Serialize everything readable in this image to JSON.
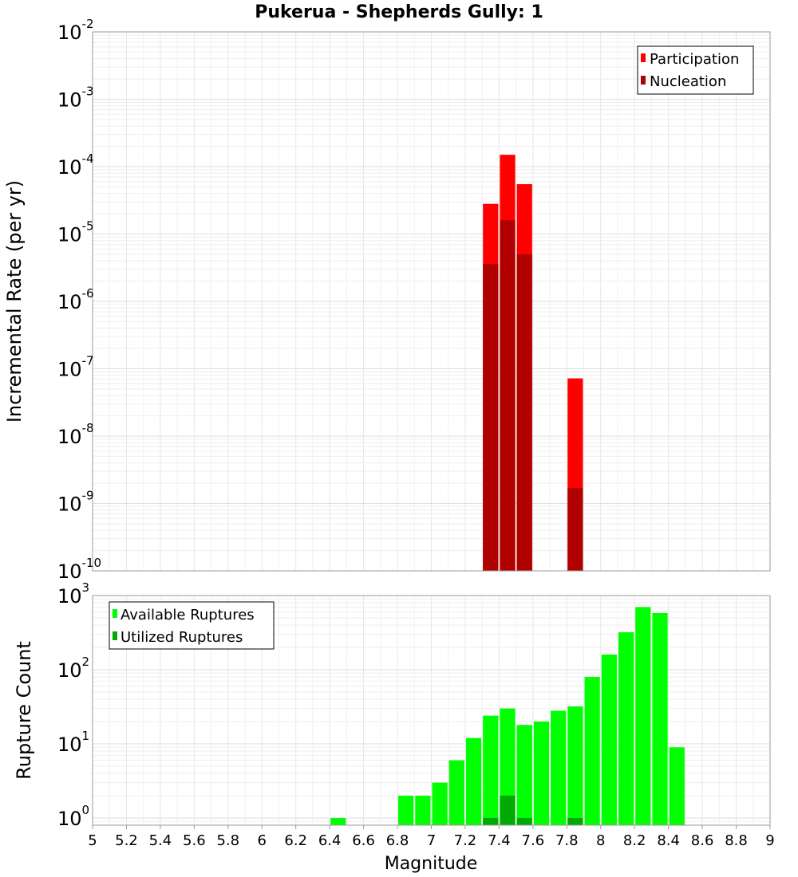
{
  "chart_data": [
    {
      "type": "bar",
      "title": "Pukerua - Shepherds Gully: 1",
      "ylabel": "Incremental Rate (per yr)",
      "xlabel": "",
      "yscale": "log",
      "ylim_exp": [
        -10,
        -2
      ],
      "yticks": [
        {
          "base": "10",
          "exp": "-2"
        },
        {
          "base": "10",
          "exp": "-3"
        },
        {
          "base": "10",
          "exp": "-4"
        },
        {
          "base": "10",
          "exp": "-5"
        },
        {
          "base": "10",
          "exp": "-6"
        },
        {
          "base": "10",
          "exp": "-7"
        },
        {
          "base": "10",
          "exp": "-8"
        },
        {
          "base": "10",
          "exp": "-9"
        },
        {
          "base": "10",
          "exp": "-10"
        }
      ],
      "xlim": [
        5,
        9
      ],
      "bin_width": 0.1,
      "grid": true,
      "legend_position": "top-right",
      "series": [
        {
          "name": "Participation",
          "color": "#ff0000",
          "x": [
            7.35,
            7.45,
            7.55,
            7.85
          ],
          "values": [
            2.8e-05,
            0.00015,
            5.5e-05,
            7.2e-08
          ]
        },
        {
          "name": "Nucleation",
          "color": "#b00000",
          "x": [
            7.35,
            7.45,
            7.55,
            7.85
          ],
          "values": [
            3.6e-06,
            1.6e-05,
            5e-06,
            1.7e-09
          ]
        }
      ]
    },
    {
      "type": "bar",
      "title": "",
      "ylabel": "Rupture Count",
      "xlabel": "Magnitude",
      "yscale": "log",
      "ylim": [
        0.8,
        1000
      ],
      "yticks": [
        {
          "base": "10",
          "exp": "3",
          "value": 1000
        },
        {
          "base": "10",
          "exp": "2",
          "value": 100
        },
        {
          "base": "10",
          "exp": "1",
          "value": 10
        },
        {
          "base": "10",
          "exp": "0",
          "value": 1
        }
      ],
      "xlim": [
        5,
        9
      ],
      "xticks": [
        "5",
        "5.2",
        "5.4",
        "5.6",
        "5.8",
        "6",
        "6.2",
        "6.4",
        "6.6",
        "6.8",
        "7",
        "7.2",
        "7.4",
        "7.6",
        "7.8",
        "8",
        "8.2",
        "8.4",
        "8.6",
        "8.8",
        "9"
      ],
      "bin_width": 0.1,
      "grid": true,
      "legend_position": "top-left",
      "series": [
        {
          "name": "Available Ruptures",
          "color": "#00ff00",
          "x": [
            6.45,
            6.85,
            6.95,
            7.05,
            7.15,
            7.25,
            7.35,
            7.45,
            7.55,
            7.65,
            7.75,
            7.85,
            7.95,
            8.05,
            8.15,
            8.25,
            8.35,
            8.45
          ],
          "values": [
            1,
            2,
            2,
            3,
            6,
            12,
            24,
            30,
            18,
            20,
            28,
            32,
            80,
            160,
            320,
            700,
            580,
            9
          ]
        },
        {
          "name": "Utilized Ruptures",
          "color": "#00aa00",
          "x": [
            7.35,
            7.45,
            7.55,
            7.85
          ],
          "values": [
            1,
            2,
            1,
            1
          ]
        }
      ]
    }
  ]
}
